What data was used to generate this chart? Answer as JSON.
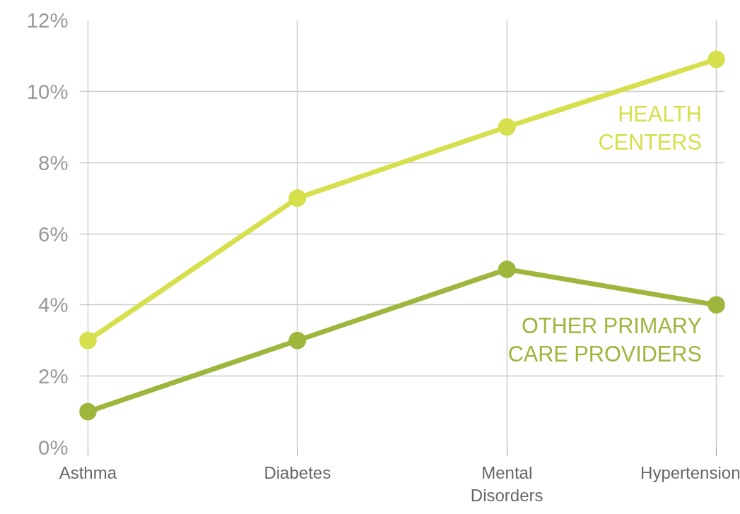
{
  "chart_data": {
    "type": "line",
    "categories": [
      "Asthma",
      "Diabetes",
      "Mental Disorders",
      "Hypertension"
    ],
    "series": [
      {
        "name": "HEALTH CENTERS",
        "color": "#d5e04c",
        "values": [
          3,
          7,
          9,
          10.9
        ]
      },
      {
        "name": "OTHER PRIMARY CARE PROVIDERS",
        "color": "#9db63c",
        "values": [
          1,
          3,
          5,
          4
        ]
      }
    ],
    "ylim": [
      0,
      12
    ],
    "yticks": [
      {
        "value": 0,
        "label": "0%"
      },
      {
        "value": 2,
        "label": "2%"
      },
      {
        "value": 4,
        "label": "4%"
      },
      {
        "value": 6,
        "label": "6%"
      },
      {
        "value": 8,
        "label": "8%"
      },
      {
        "value": 10,
        "label": "10%"
      },
      {
        "value": 12,
        "label": "12%"
      }
    ],
    "grid": true,
    "marker": "circle",
    "line_style": "solid"
  }
}
